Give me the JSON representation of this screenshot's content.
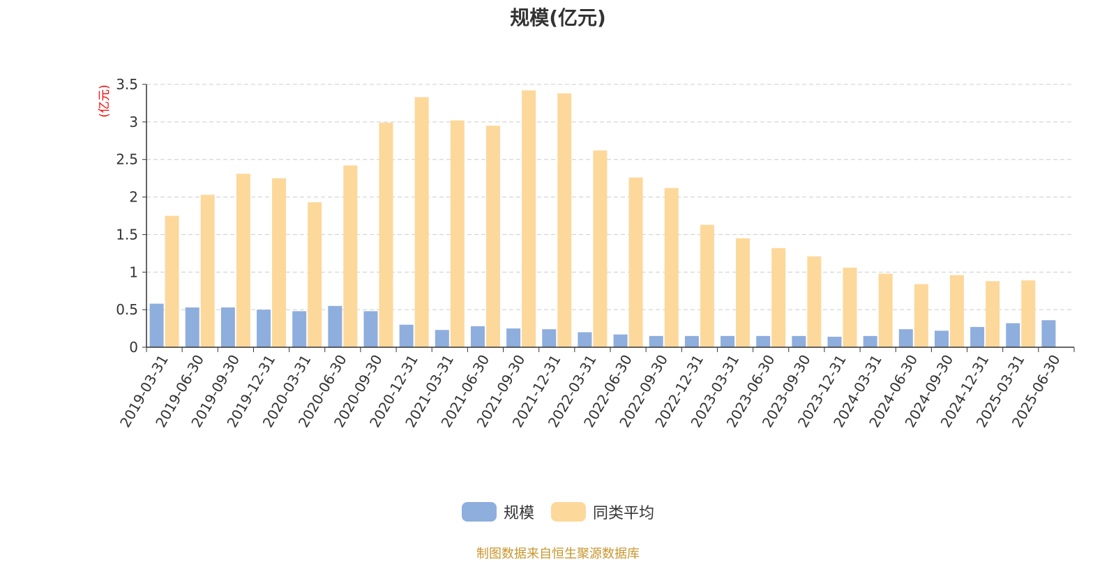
{
  "chart_data": {
    "type": "bar",
    "title": "规模(亿元)",
    "ylabel": "(亿元)",
    "xlabel": "",
    "ylim": [
      0,
      3.5
    ],
    "yticks": [
      "0",
      "0.5",
      "1",
      "1.5",
      "2",
      "2.5",
      "3",
      "3.5"
    ],
    "grid": true,
    "legend_position": "bottom",
    "categories": [
      "2019-03-31",
      "2019-06-30",
      "2019-09-30",
      "2019-12-31",
      "2020-03-31",
      "2020-06-30",
      "2020-09-30",
      "2020-12-31",
      "2021-03-31",
      "2021-06-30",
      "2021-09-30",
      "2021-12-31",
      "2022-03-31",
      "2022-06-30",
      "2022-09-30",
      "2022-12-31",
      "2023-03-31",
      "2023-06-30",
      "2023-09-30",
      "2023-12-31",
      "2024-03-31",
      "2024-06-30",
      "2024-09-30",
      "2024-12-31",
      "2025-03-31",
      "2025-06-30"
    ],
    "series": [
      {
        "name": "规模",
        "color": "#8eaedd",
        "values": [
          0.58,
          0.53,
          0.53,
          0.5,
          0.48,
          0.55,
          0.48,
          0.3,
          0.23,
          0.28,
          0.25,
          0.24,
          0.2,
          0.17,
          0.15,
          0.15,
          0.15,
          0.15,
          0.15,
          0.14,
          0.15,
          0.24,
          0.22,
          0.27,
          0.32,
          0.36
        ]
      },
      {
        "name": "同类平均",
        "color": "#fdd89b",
        "values": [
          1.75,
          2.03,
          2.31,
          2.25,
          1.93,
          2.42,
          2.99,
          3.33,
          3.02,
          2.95,
          3.42,
          3.38,
          2.62,
          2.26,
          2.12,
          1.63,
          1.45,
          1.32,
          1.21,
          1.06,
          0.98,
          0.84,
          0.96,
          0.88,
          0.89,
          null
        ]
      }
    ]
  },
  "source_text": "制图数据来自恒生聚源数据库",
  "colors": {
    "title": "#333333",
    "ylabel": "#ff0000",
    "source": "#c8962e",
    "grid": "#cccccc",
    "axis": "#333333"
  }
}
